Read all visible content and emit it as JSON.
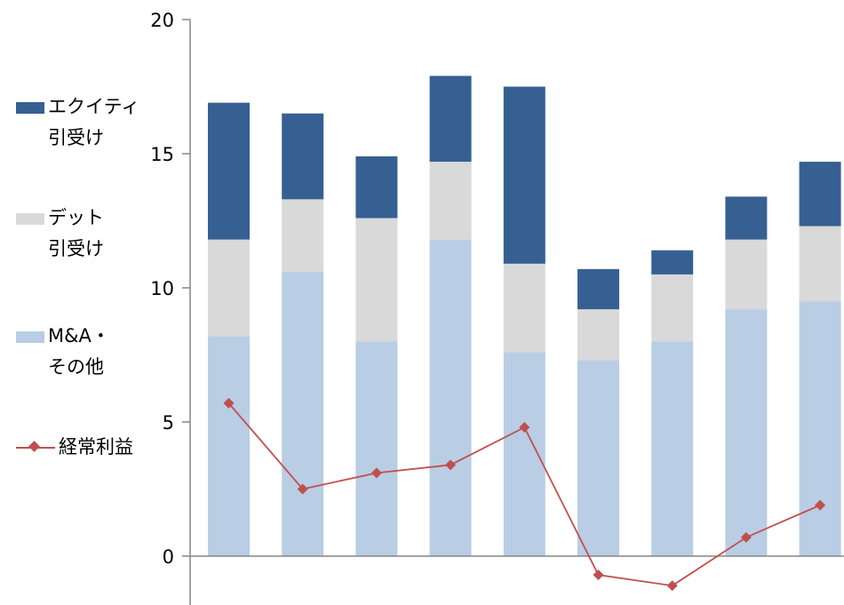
{
  "chart_data": {
    "type": "bar",
    "stacked": true,
    "categories": [
      "",
      "",
      "",
      "",
      "",
      "",
      "",
      "",
      ""
    ],
    "series": [
      {
        "name": "M&A・\nその他",
        "color": "#b9cde5",
        "values": [
          8.2,
          10.6,
          8.0,
          11.8,
          7.6,
          7.3,
          8.0,
          9.2,
          9.5
        ]
      },
      {
        "name": "デット\n引受け",
        "color": "#d9d9d9",
        "values": [
          3.6,
          2.7,
          4.6,
          2.9,
          3.3,
          1.9,
          2.5,
          2.6,
          2.8
        ]
      },
      {
        "name": "エクイティ\n引受け",
        "color": "#376092",
        "values": [
          5.1,
          3.2,
          2.3,
          3.2,
          6.6,
          1.5,
          0.9,
          1.6,
          2.4
        ]
      }
    ],
    "line_series": {
      "name": "経常利益",
      "color": "#c0504d",
      "values": [
        5.7,
        2.5,
        3.1,
        3.4,
        4.8,
        -0.7,
        -1.1,
        0.7,
        1.9
      ]
    },
    "ylim": [
      -1.8,
      20
    ],
    "yticks": [
      "0",
      "5",
      "10",
      "15",
      "20"
    ],
    "grid": false,
    "legend_position": "left"
  }
}
